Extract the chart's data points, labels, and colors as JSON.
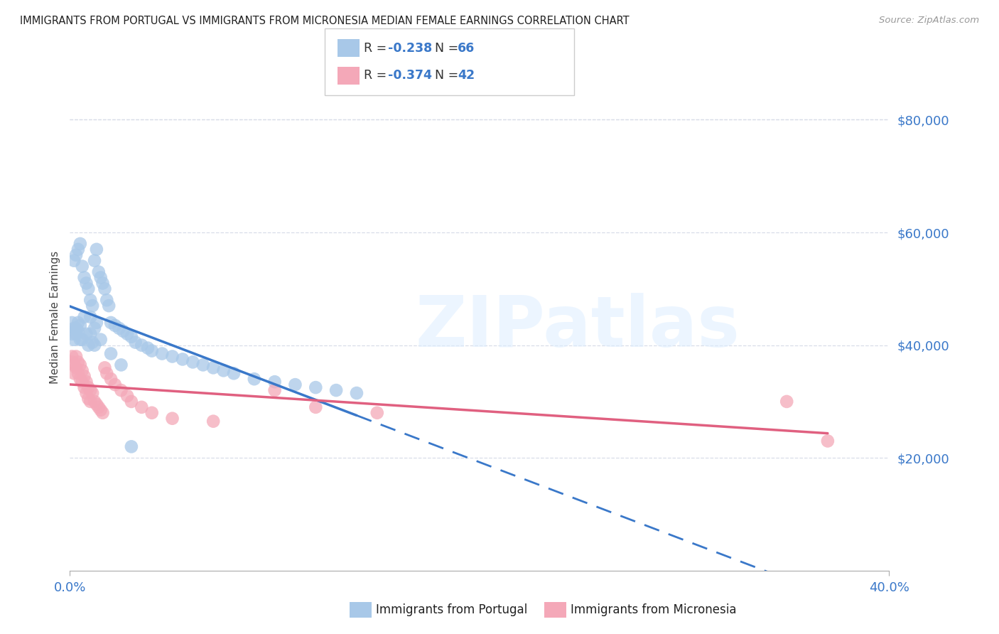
{
  "title": "IMMIGRANTS FROM PORTUGAL VS IMMIGRANTS FROM MICRONESIA MEDIAN FEMALE EARNINGS CORRELATION CHART",
  "source": "Source: ZipAtlas.com",
  "ylabel": "Median Female Earnings",
  "yticks": [
    20000,
    40000,
    60000,
    80000
  ],
  "ytick_labels": [
    "$20,000",
    "$40,000",
    "$60,000",
    "$80,000"
  ],
  "ylim": [
    0,
    90000
  ],
  "xlim": [
    0.0,
    0.4
  ],
  "portugal_color": "#a8c8e8",
  "micronesia_color": "#f4a8b8",
  "trendline_portugal_color": "#3a78c9",
  "trendline_micronesia_color": "#e06080",
  "grid_color": "#d8dde8",
  "watermark": "ZIPatlas",
  "portugal_x": [
    0.001,
    0.001,
    0.002,
    0.002,
    0.002,
    0.003,
    0.003,
    0.003,
    0.004,
    0.004,
    0.004,
    0.005,
    0.005,
    0.005,
    0.006,
    0.006,
    0.007,
    0.007,
    0.008,
    0.008,
    0.009,
    0.009,
    0.01,
    0.01,
    0.011,
    0.011,
    0.012,
    0.012,
    0.013,
    0.013,
    0.014,
    0.015,
    0.016,
    0.017,
    0.018,
    0.019,
    0.02,
    0.022,
    0.024,
    0.026,
    0.028,
    0.03,
    0.032,
    0.035,
    0.038,
    0.04,
    0.045,
    0.05,
    0.055,
    0.06,
    0.065,
    0.07,
    0.075,
    0.08,
    0.09,
    0.1,
    0.11,
    0.12,
    0.13,
    0.14,
    0.01,
    0.012,
    0.015,
    0.02,
    0.025,
    0.03
  ],
  "portugal_y": [
    42000,
    44000,
    43000,
    41000,
    55000,
    43000,
    56000,
    42000,
    57000,
    44000,
    42500,
    58000,
    41000,
    43500,
    54000,
    41000,
    52000,
    45000,
    51000,
    42000,
    50000,
    40000,
    48000,
    42000,
    47000,
    40500,
    55000,
    40000,
    57000,
    44000,
    53000,
    52000,
    51000,
    50000,
    48000,
    47000,
    44000,
    43500,
    43000,
    42500,
    42000,
    41500,
    40500,
    40000,
    39500,
    39000,
    38500,
    38000,
    37500,
    37000,
    36500,
    36000,
    35500,
    35000,
    34000,
    33500,
    33000,
    32500,
    32000,
    31500,
    45000,
    43000,
    41000,
    38500,
    36500,
    22000
  ],
  "micronesia_x": [
    0.001,
    0.001,
    0.002,
    0.002,
    0.003,
    0.003,
    0.004,
    0.004,
    0.005,
    0.005,
    0.006,
    0.006,
    0.007,
    0.007,
    0.008,
    0.008,
    0.009,
    0.009,
    0.01,
    0.01,
    0.011,
    0.012,
    0.013,
    0.014,
    0.015,
    0.016,
    0.017,
    0.018,
    0.02,
    0.022,
    0.025,
    0.028,
    0.03,
    0.035,
    0.04,
    0.05,
    0.07,
    0.1,
    0.12,
    0.15,
    0.35,
    0.37
  ],
  "micronesia_y": [
    38000,
    37000,
    36500,
    35000,
    38000,
    36000,
    37000,
    35000,
    36500,
    34000,
    35500,
    33500,
    34500,
    32500,
    33500,
    31500,
    32500,
    30500,
    32000,
    30000,
    31500,
    30000,
    29500,
    29000,
    28500,
    28000,
    36000,
    35000,
    34000,
    33000,
    32000,
    31000,
    30000,
    29000,
    28000,
    27000,
    26500,
    32000,
    29000,
    28000,
    30000,
    23000
  ]
}
